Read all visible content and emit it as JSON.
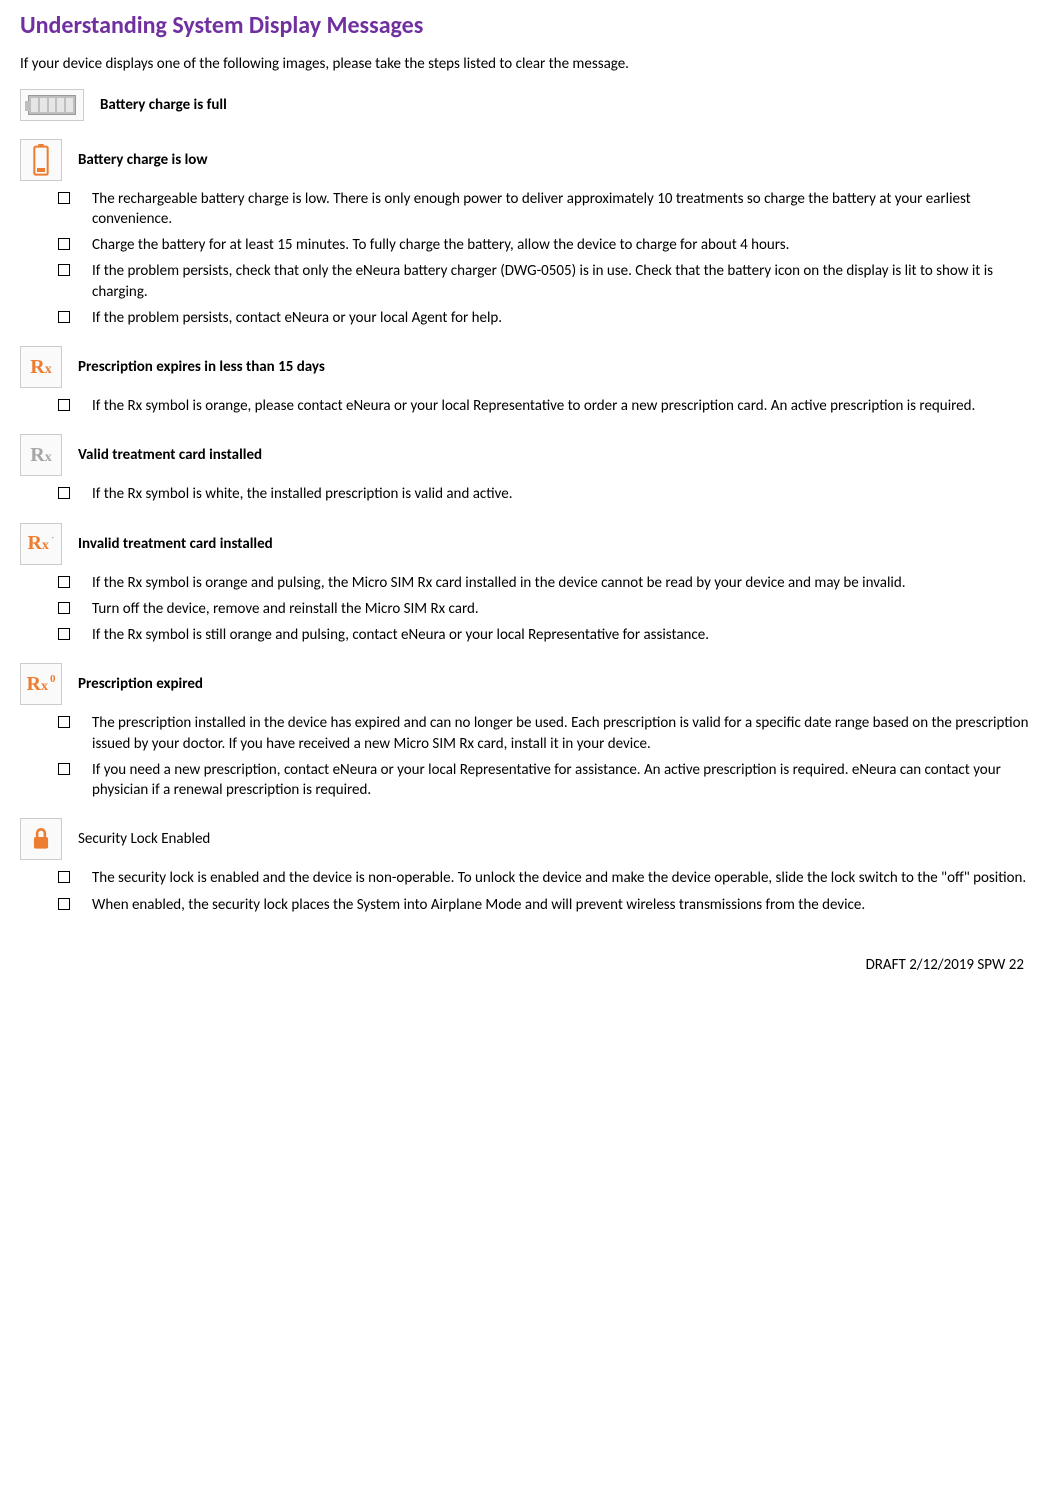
{
  "title": "Understanding System Display Messages",
  "intro": "If your device displays one of the following images, please take the steps listed to clear the message.",
  "sections": [
    {
      "icon": "battery-full",
      "label": "Battery charge is full",
      "bold": true,
      "items": []
    },
    {
      "icon": "battery-low",
      "label": "Battery charge is low",
      "bold": true,
      "items": [
        "The rechargeable battery charge is low.  There is only enough power to deliver approximately 10 treatments so charge the battery at your earliest convenience.",
        "Charge the battery for at least 15 minutes.  To fully charge the battery, allow the device to charge for about 4 hours.",
        "If the problem persists, check that only the eNeura battery charger (DWG-0505) is in use. Check that the battery icon on the display is lit to show it is charging.",
        "If the problem persists, contact eNeura or your local Agent for help."
      ]
    },
    {
      "icon": "rx-orange",
      "label": " Prescription expires in less than 15 days",
      "bold": true,
      "items": [
        "If the Rx symbol is orange, please contact eNeura or your local Representative to order a new prescription card.  An active prescription is required."
      ]
    },
    {
      "icon": "rx-grey",
      "label": "Valid treatment card installed",
      "bold": true,
      "items": [
        "If the Rx symbol is white, the installed prescription is valid and active."
      ]
    },
    {
      "icon": "rx-orange-dot",
      "label": "Invalid treatment card installed",
      "bold": true,
      "items": [
        "If the Rx symbol is orange and pulsing, the Micro SIM Rx card installed in the device cannot be read by your device and may be invalid.",
        "Turn off the device, remove and reinstall the Micro SIM Rx card.",
        "If the Rx symbol is still orange and pulsing, contact eNeura or your local Representative for assistance."
      ]
    },
    {
      "icon": "rx-orange-zero",
      "label": "Prescription expired",
      "bold": true,
      "items": [
        "The prescription installed in the device has expired and can no longer be used.  Each prescription is valid for a specific date range based on the prescription issued by your doctor.  If you have received a new Micro SIM Rx card, install it in your device.",
        "If you need a new prescription, contact eNeura or your local Representative for assistance.  An active prescription is required.  eNeura can contact your physician if a renewal prescription is required."
      ]
    },
    {
      "icon": "lock",
      "label": "Security Lock Enabled",
      "bold": false,
      "items": [
        "The security lock is enabled and the device is non-operable.  To unlock the device and make the device operable, slide the lock switch to the \"off\" position.",
        "When enabled, the security lock places the System into Airplane Mode and will prevent wireless transmissions from the device."
      ]
    }
  ],
  "footer": "DRAFT 2/12/2019 SPW   22",
  "colors": {
    "title": "#7030a0",
    "orange": "#ed7d31",
    "grey_icon": "#a6a6a6",
    "lock": "#ed7d31"
  }
}
